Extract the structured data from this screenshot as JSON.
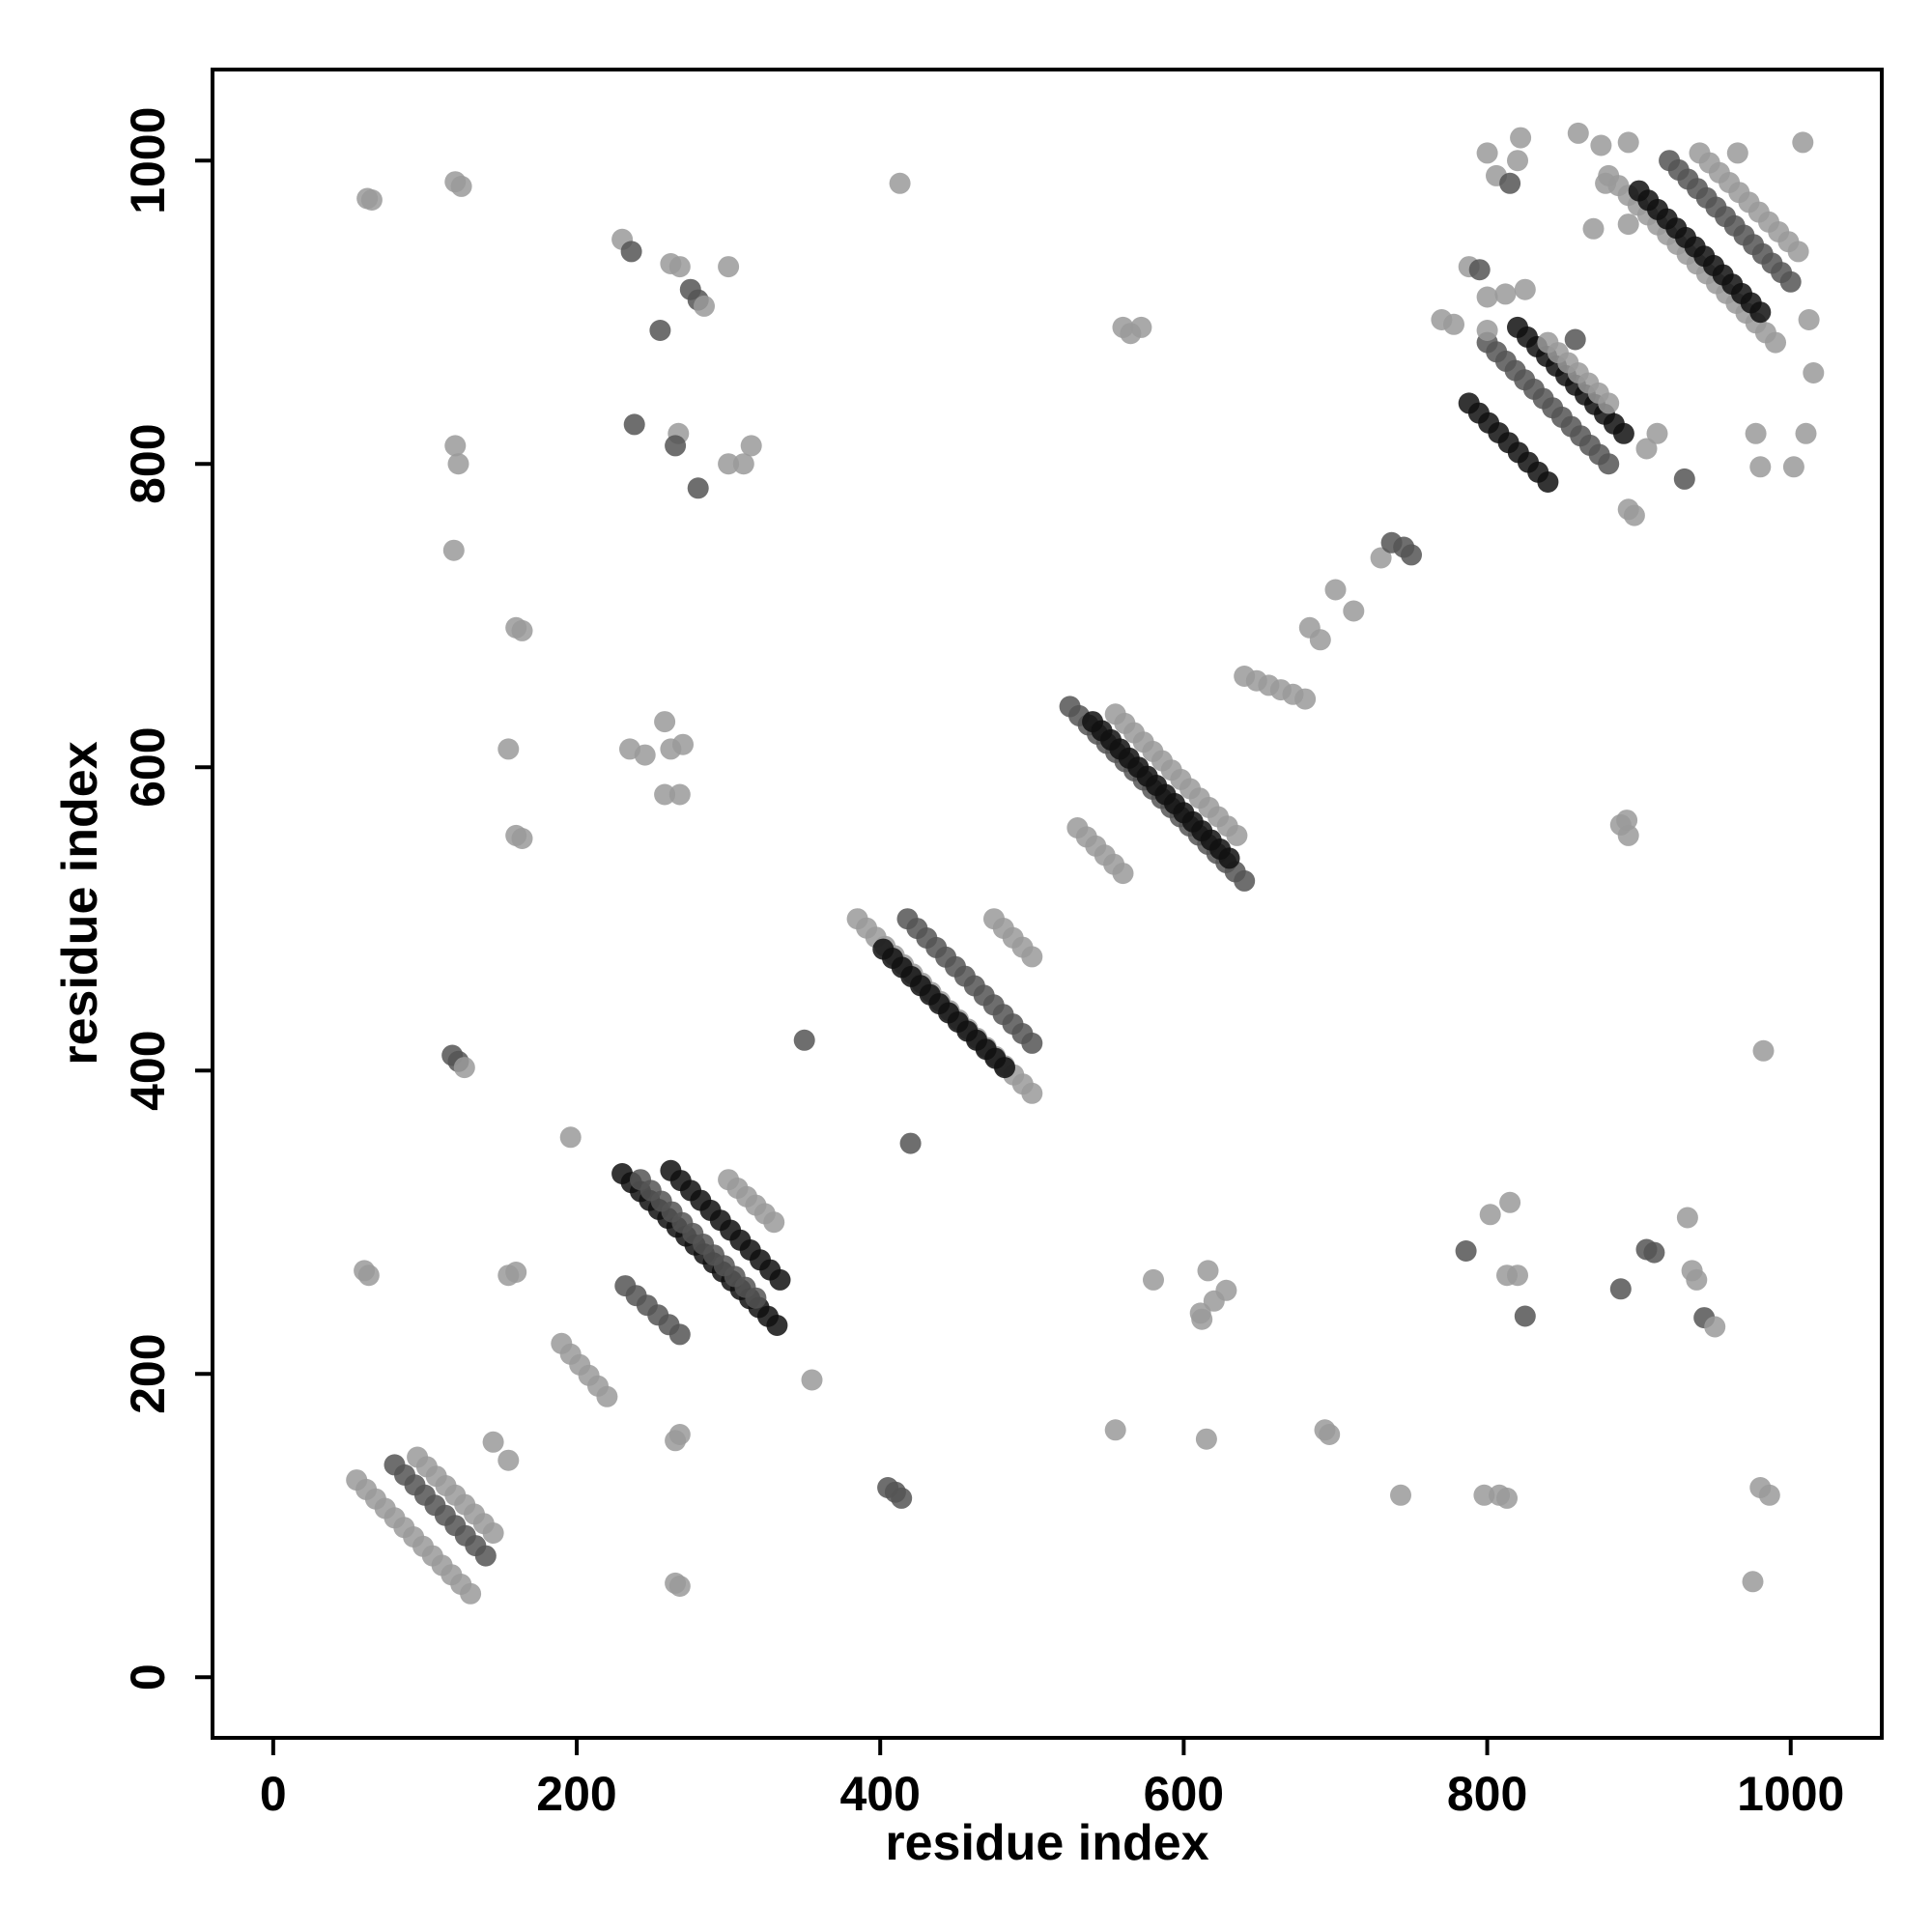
{
  "chart_data": {
    "type": "scatter",
    "xlabel": "residue index",
    "ylabel": "residue index",
    "xlim": [
      -40,
      1060
    ],
    "ylim": [
      -40,
      1060
    ],
    "x_ticks": [
      "0",
      "200",
      "400",
      "600",
      "800",
      "1000"
    ],
    "y_ticks": [
      "0",
      "200",
      "400",
      "600",
      "800",
      "1000"
    ],
    "grid": false,
    "legend": "none",
    "colors": {
      "dark": "#111111",
      "mid": "#555555",
      "light": "#9a9a9a",
      "axis": "#000000"
    },
    "segments": [
      {
        "x1": 230,
        "y1": 332,
        "x2": 332,
        "y2": 232,
        "n": 18,
        "tone": "dark"
      },
      {
        "x1": 242,
        "y1": 328,
        "x2": 318,
        "y2": 250,
        "n": 12,
        "tone": "mid"
      },
      {
        "x1": 262,
        "y1": 334,
        "x2": 334,
        "y2": 262,
        "n": 12,
        "tone": "dark"
      },
      {
        "x1": 300,
        "y1": 328,
        "x2": 330,
        "y2": 300,
        "n": 6,
        "tone": "light"
      },
      {
        "x1": 232,
        "y1": 258,
        "x2": 268,
        "y2": 226,
        "n": 6,
        "tone": "mid"
      },
      {
        "x1": 385,
        "y1": 500,
        "x2": 500,
        "y2": 385,
        "n": 20,
        "tone": "light"
      },
      {
        "x1": 402,
        "y1": 480,
        "x2": 482,
        "y2": 402,
        "n": 14,
        "tone": "dark"
      },
      {
        "x1": 418,
        "y1": 500,
        "x2": 500,
        "y2": 418,
        "n": 14,
        "tone": "mid"
      },
      {
        "x1": 475,
        "y1": 500,
        "x2": 500,
        "y2": 475,
        "n": 5,
        "tone": "light"
      },
      {
        "x1": 525,
        "y1": 640,
        "x2": 640,
        "y2": 525,
        "n": 20,
        "tone": "mid"
      },
      {
        "x1": 540,
        "y1": 630,
        "x2": 630,
        "y2": 540,
        "n": 16,
        "tone": "dark"
      },
      {
        "x1": 555,
        "y1": 635,
        "x2": 635,
        "y2": 555,
        "n": 14,
        "tone": "light"
      },
      {
        "x1": 530,
        "y1": 560,
        "x2": 560,
        "y2": 530,
        "n": 6,
        "tone": "light"
      },
      {
        "x1": 788,
        "y1": 840,
        "x2": 840,
        "y2": 788,
        "n": 9,
        "tone": "dark"
      },
      {
        "x1": 800,
        "y1": 880,
        "x2": 880,
        "y2": 800,
        "n": 14,
        "tone": "mid"
      },
      {
        "x1": 820,
        "y1": 890,
        "x2": 890,
        "y2": 820,
        "n": 12,
        "tone": "dark"
      },
      {
        "x1": 840,
        "y1": 880,
        "x2": 880,
        "y2": 840,
        "n": 7,
        "tone": "light"
      },
      {
        "x1": 880,
        "y1": 990,
        "x2": 990,
        "y2": 880,
        "n": 18,
        "tone": "light"
      },
      {
        "x1": 900,
        "y1": 980,
        "x2": 980,
        "y2": 900,
        "n": 14,
        "tone": "dark"
      },
      {
        "x1": 920,
        "y1": 1000,
        "x2": 1000,
        "y2": 920,
        "n": 14,
        "tone": "mid"
      },
      {
        "x1": 940,
        "y1": 1005,
        "x2": 1005,
        "y2": 940,
        "n": 11,
        "tone": "light"
      },
      {
        "x1": 55,
        "y1": 130,
        "x2": 130,
        "y2": 55,
        "n": 13,
        "tone": "light"
      },
      {
        "x1": 80,
        "y1": 140,
        "x2": 140,
        "y2": 80,
        "n": 10,
        "tone": "mid"
      },
      {
        "x1": 95,
        "y1": 145,
        "x2": 145,
        "y2": 95,
        "n": 9,
        "tone": "light"
      },
      {
        "x1": 640,
        "y1": 660,
        "x2": 680,
        "y2": 645,
        "n": 6,
        "tone": "light"
      },
      {
        "x1": 190,
        "y1": 220,
        "x2": 220,
        "y2": 185,
        "n": 6,
        "tone": "light"
      }
    ],
    "points": [
      {
        "x": 62,
        "y": 975,
        "tone": "light"
      },
      {
        "x": 65,
        "y": 974,
        "tone": "light"
      },
      {
        "x": 120,
        "y": 986,
        "tone": "light"
      },
      {
        "x": 124,
        "y": 983,
        "tone": "light"
      },
      {
        "x": 120,
        "y": 812,
        "tone": "light"
      },
      {
        "x": 122,
        "y": 800,
        "tone": "light"
      },
      {
        "x": 119,
        "y": 743,
        "tone": "light"
      },
      {
        "x": 160,
        "y": 692,
        "tone": "light"
      },
      {
        "x": 164,
        "y": 690,
        "tone": "light"
      },
      {
        "x": 155,
        "y": 612,
        "tone": "light"
      },
      {
        "x": 160,
        "y": 555,
        "tone": "light"
      },
      {
        "x": 164,
        "y": 553,
        "tone": "light"
      },
      {
        "x": 118,
        "y": 410,
        "tone": "mid"
      },
      {
        "x": 122,
        "y": 406,
        "tone": "mid"
      },
      {
        "x": 126,
        "y": 402,
        "tone": "light"
      },
      {
        "x": 196,
        "y": 356,
        "tone": "light"
      },
      {
        "x": 60,
        "y": 268,
        "tone": "light"
      },
      {
        "x": 63,
        "y": 265,
        "tone": "light"
      },
      {
        "x": 155,
        "y": 265,
        "tone": "light"
      },
      {
        "x": 160,
        "y": 267,
        "tone": "light"
      },
      {
        "x": 145,
        "y": 155,
        "tone": "light"
      },
      {
        "x": 155,
        "y": 143,
        "tone": "light"
      },
      {
        "x": 230,
        "y": 948,
        "tone": "light"
      },
      {
        "x": 236,
        "y": 940,
        "tone": "mid"
      },
      {
        "x": 262,
        "y": 932,
        "tone": "light"
      },
      {
        "x": 268,
        "y": 930,
        "tone": "light"
      },
      {
        "x": 275,
        "y": 915,
        "tone": "mid"
      },
      {
        "x": 280,
        "y": 908,
        "tone": "mid"
      },
      {
        "x": 284,
        "y": 904,
        "tone": "light"
      },
      {
        "x": 255,
        "y": 888,
        "tone": "mid"
      },
      {
        "x": 300,
        "y": 930,
        "tone": "light"
      },
      {
        "x": 238,
        "y": 826,
        "tone": "mid"
      },
      {
        "x": 267,
        "y": 820,
        "tone": "light"
      },
      {
        "x": 265,
        "y": 812,
        "tone": "mid"
      },
      {
        "x": 300,
        "y": 800,
        "tone": "light"
      },
      {
        "x": 310,
        "y": 800,
        "tone": "light"
      },
      {
        "x": 315,
        "y": 812,
        "tone": "light"
      },
      {
        "x": 280,
        "y": 784,
        "tone": "mid"
      },
      {
        "x": 235,
        "y": 612,
        "tone": "light"
      },
      {
        "x": 245,
        "y": 608,
        "tone": "light"
      },
      {
        "x": 258,
        "y": 630,
        "tone": "light"
      },
      {
        "x": 262,
        "y": 612,
        "tone": "light"
      },
      {
        "x": 270,
        "y": 615,
        "tone": "light"
      },
      {
        "x": 258,
        "y": 582,
        "tone": "light"
      },
      {
        "x": 268,
        "y": 582,
        "tone": "light"
      },
      {
        "x": 413,
        "y": 985,
        "tone": "light"
      },
      {
        "x": 560,
        "y": 890,
        "tone": "light"
      },
      {
        "x": 565,
        "y": 886,
        "tone": "light"
      },
      {
        "x": 572,
        "y": 890,
        "tone": "light"
      },
      {
        "x": 265,
        "y": 156,
        "tone": "light"
      },
      {
        "x": 268,
        "y": 160,
        "tone": "light"
      },
      {
        "x": 265,
        "y": 62,
        "tone": "light"
      },
      {
        "x": 268,
        "y": 60,
        "tone": "light"
      },
      {
        "x": 405,
        "y": 125,
        "tone": "mid"
      },
      {
        "x": 410,
        "y": 122,
        "tone": "mid"
      },
      {
        "x": 414,
        "y": 118,
        "tone": "mid"
      },
      {
        "x": 355,
        "y": 196,
        "tone": "light"
      },
      {
        "x": 420,
        "y": 352,
        "tone": "mid"
      },
      {
        "x": 350,
        "y": 420,
        "tone": "mid"
      },
      {
        "x": 555,
        "y": 163,
        "tone": "light"
      },
      {
        "x": 615,
        "y": 157,
        "tone": "light"
      },
      {
        "x": 693,
        "y": 163,
        "tone": "light"
      },
      {
        "x": 696,
        "y": 160,
        "tone": "light"
      },
      {
        "x": 743,
        "y": 120,
        "tone": "light"
      },
      {
        "x": 580,
        "y": 262,
        "tone": "light"
      },
      {
        "x": 611,
        "y": 240,
        "tone": "light"
      },
      {
        "x": 616,
        "y": 268,
        "tone": "light"
      },
      {
        "x": 620,
        "y": 248,
        "tone": "light"
      },
      {
        "x": 628,
        "y": 255,
        "tone": "light"
      },
      {
        "x": 612,
        "y": 236,
        "tone": "light"
      },
      {
        "x": 798,
        "y": 120,
        "tone": "light"
      },
      {
        "x": 808,
        "y": 120,
        "tone": "light"
      },
      {
        "x": 813,
        "y": 118,
        "tone": "light"
      },
      {
        "x": 786,
        "y": 281,
        "tone": "mid"
      },
      {
        "x": 802,
        "y": 305,
        "tone": "light"
      },
      {
        "x": 815,
        "y": 313,
        "tone": "light"
      },
      {
        "x": 813,
        "y": 265,
        "tone": "light"
      },
      {
        "x": 820,
        "y": 265,
        "tone": "light"
      },
      {
        "x": 825,
        "y": 238,
        "tone": "mid"
      },
      {
        "x": 888,
        "y": 256,
        "tone": "mid"
      },
      {
        "x": 905,
        "y": 282,
        "tone": "mid"
      },
      {
        "x": 910,
        "y": 280,
        "tone": "mid"
      },
      {
        "x": 932,
        "y": 303,
        "tone": "light"
      },
      {
        "x": 935,
        "y": 268,
        "tone": "light"
      },
      {
        "x": 938,
        "y": 262,
        "tone": "light"
      },
      {
        "x": 943,
        "y": 237,
        "tone": "mid"
      },
      {
        "x": 950,
        "y": 231,
        "tone": "light"
      },
      {
        "x": 975,
        "y": 63,
        "tone": "light"
      },
      {
        "x": 980,
        "y": 125,
        "tone": "light"
      },
      {
        "x": 986,
        "y": 120,
        "tone": "light"
      },
      {
        "x": 982,
        "y": 413,
        "tone": "light"
      },
      {
        "x": 888,
        "y": 562,
        "tone": "light"
      },
      {
        "x": 892,
        "y": 565,
        "tone": "light"
      },
      {
        "x": 893,
        "y": 555,
        "tone": "light"
      },
      {
        "x": 700,
        "y": 717,
        "tone": "light"
      },
      {
        "x": 712,
        "y": 703,
        "tone": "light"
      },
      {
        "x": 730,
        "y": 738,
        "tone": "light"
      },
      {
        "x": 737,
        "y": 748,
        "tone": "mid"
      },
      {
        "x": 745,
        "y": 745,
        "tone": "mid"
      },
      {
        "x": 750,
        "y": 740,
        "tone": "mid"
      },
      {
        "x": 683,
        "y": 692,
        "tone": "light"
      },
      {
        "x": 690,
        "y": 684,
        "tone": "light"
      },
      {
        "x": 800,
        "y": 1005,
        "tone": "light"
      },
      {
        "x": 806,
        "y": 990,
        "tone": "light"
      },
      {
        "x": 822,
        "y": 1015,
        "tone": "light"
      },
      {
        "x": 820,
        "y": 1000,
        "tone": "light"
      },
      {
        "x": 815,
        "y": 985,
        "tone": "mid"
      },
      {
        "x": 860,
        "y": 1018,
        "tone": "light"
      },
      {
        "x": 875,
        "y": 1010,
        "tone": "light"
      },
      {
        "x": 893,
        "y": 1012,
        "tone": "light"
      },
      {
        "x": 965,
        "y": 1005,
        "tone": "light"
      },
      {
        "x": 1008,
        "y": 1012,
        "tone": "light"
      },
      {
        "x": 1012,
        "y": 895,
        "tone": "light"
      },
      {
        "x": 1015,
        "y": 860,
        "tone": "light"
      },
      {
        "x": 1010,
        "y": 820,
        "tone": "light"
      },
      {
        "x": 1002,
        "y": 798,
        "tone": "light"
      },
      {
        "x": 977,
        "y": 820,
        "tone": "light"
      },
      {
        "x": 980,
        "y": 798,
        "tone": "light"
      },
      {
        "x": 930,
        "y": 790,
        "tone": "mid"
      },
      {
        "x": 893,
        "y": 770,
        "tone": "light"
      },
      {
        "x": 897,
        "y": 766,
        "tone": "light"
      },
      {
        "x": 905,
        "y": 810,
        "tone": "light"
      },
      {
        "x": 912,
        "y": 820,
        "tone": "light"
      },
      {
        "x": 770,
        "y": 895,
        "tone": "light"
      },
      {
        "x": 778,
        "y": 892,
        "tone": "light"
      },
      {
        "x": 788,
        "y": 930,
        "tone": "light"
      },
      {
        "x": 795,
        "y": 928,
        "tone": "mid"
      },
      {
        "x": 800,
        "y": 910,
        "tone": "light"
      },
      {
        "x": 812,
        "y": 912,
        "tone": "light"
      },
      {
        "x": 825,
        "y": 915,
        "tone": "light"
      },
      {
        "x": 800,
        "y": 888,
        "tone": "light"
      },
      {
        "x": 858,
        "y": 882,
        "tone": "mid"
      },
      {
        "x": 870,
        "y": 955,
        "tone": "light"
      },
      {
        "x": 878,
        "y": 985,
        "tone": "light"
      },
      {
        "x": 893,
        "y": 958,
        "tone": "light"
      }
    ]
  }
}
